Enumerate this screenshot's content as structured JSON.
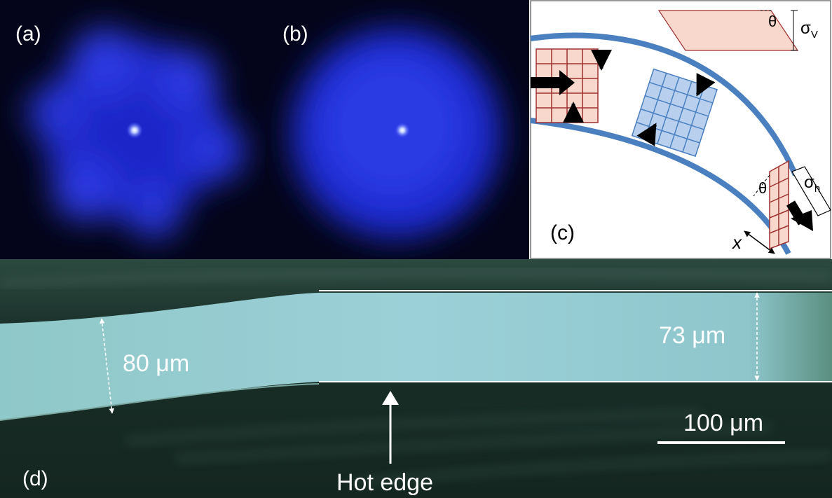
{
  "panels": {
    "a": {
      "label": "(a)"
    },
    "b": {
      "label": "(b)"
    },
    "c": {
      "label": "(c)",
      "theta_top": "θ",
      "sigma_v": {
        "symbol": "σ",
        "sub": "V"
      },
      "theta_side": "θ",
      "sigma_h": {
        "symbol": "σ",
        "sub": "h"
      },
      "x": "x"
    },
    "d": {
      "label": "(d)",
      "width_left": "80 μm",
      "width_right": "73 μm",
      "scale_bar": "100 μm",
      "arrow_label": "Hot edge"
    }
  }
}
